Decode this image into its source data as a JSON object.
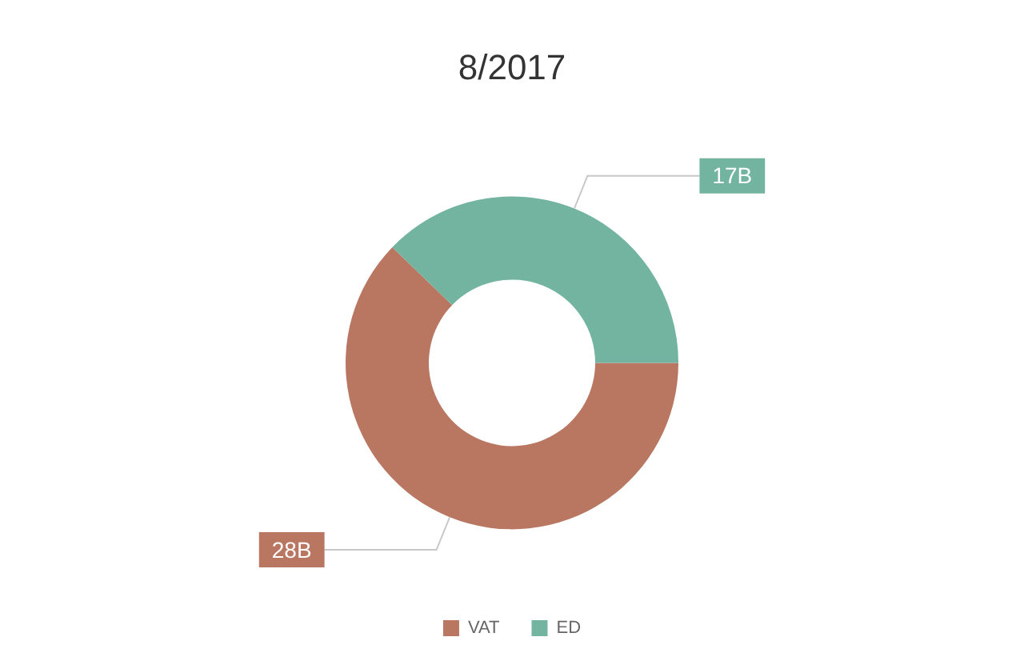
{
  "chart_data": {
    "type": "donut",
    "title": "8/2017",
    "categories": [
      "VAT",
      "ED"
    ],
    "values": [
      28,
      17
    ],
    "colors": [
      "#b97762",
      "#72b4a0"
    ],
    "value_labels": [
      "28B",
      "17B"
    ],
    "legend": "bottom"
  }
}
